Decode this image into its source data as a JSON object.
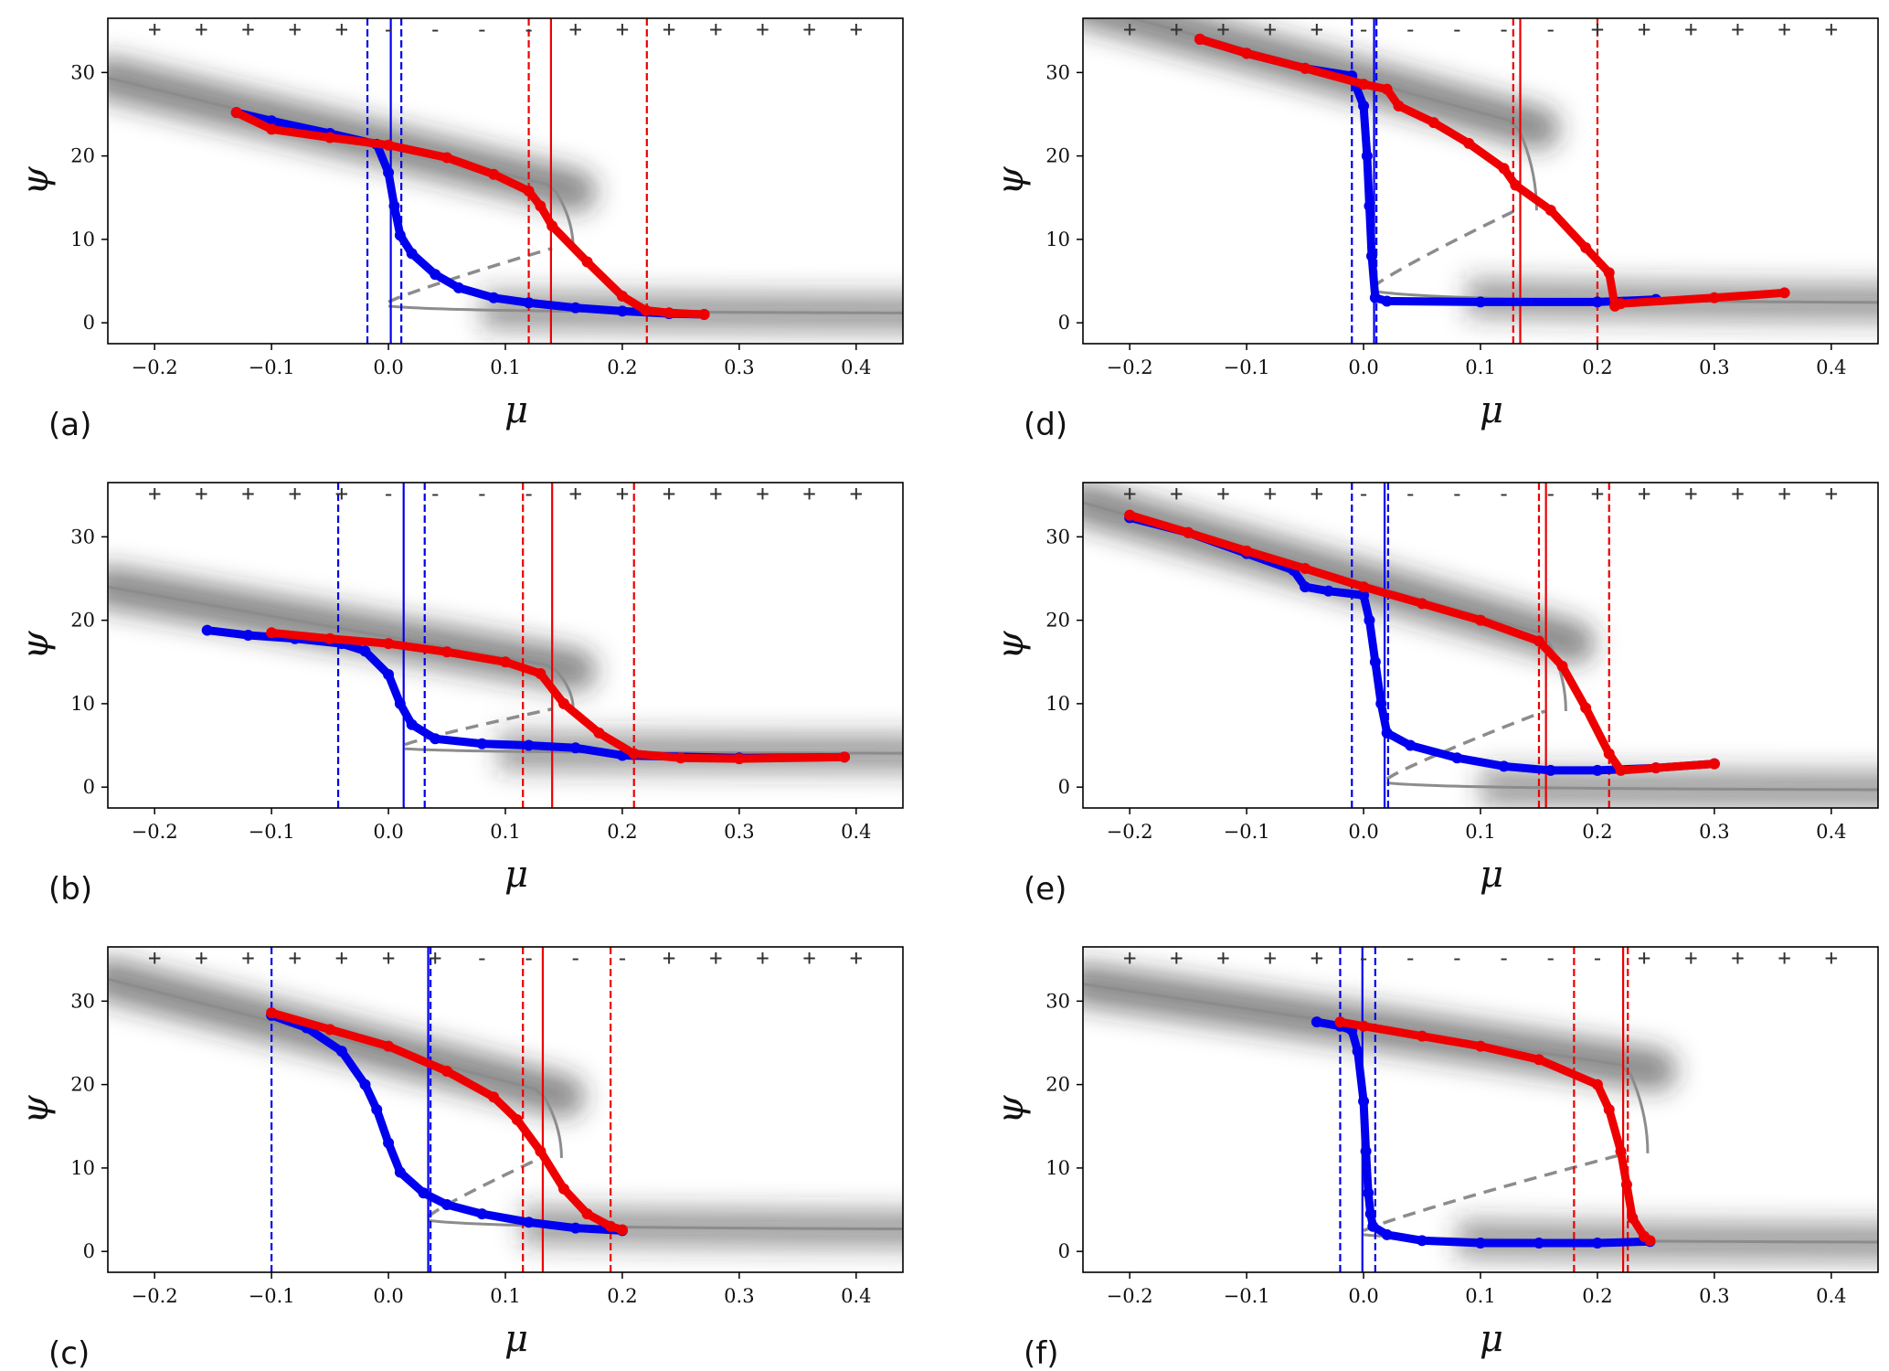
{
  "colors": {
    "up_sweep": "#0000ee",
    "down_sweep": "#ee0000",
    "equilibrium": "#8c8c8c",
    "frame": "#000000"
  },
  "chart_data": [
    {
      "type": "scatter",
      "panel_label": "(a)",
      "xlabel": "μ",
      "ylabel": "ψ",
      "xlim": [
        -0.24,
        0.44
      ],
      "ylim": [
        -2.5,
        36.5
      ],
      "xticks": [
        -0.2,
        -0.1,
        0.0,
        0.1,
        0.2,
        0.3,
        0.4
      ],
      "xtick_labels": [
        "−0.2",
        "−0.1",
        "0.0",
        "0.1",
        "0.2",
        "0.3",
        "0.4"
      ],
      "yticks": [
        0,
        10,
        20,
        30
      ],
      "ytick_labels": [
        "0",
        "10",
        "20",
        "30"
      ],
      "signs": [
        "+",
        "+",
        "+",
        "+",
        "+",
        "-",
        "-",
        "-",
        "-",
        "+",
        "+",
        "+",
        "+",
        "+",
        "+",
        "+"
      ],
      "equilibrium": {
        "mu_lo": 0.0,
        "mu_hi": 0.14,
        "a": 0.8,
        "b": 1.2,
        "c": 21.2,
        "d": -34
      },
      "vlines": [
        {
          "x": -0.018,
          "style": "dashed",
          "series": "up"
        },
        {
          "x": 0.002,
          "style": "solid",
          "series": "up"
        },
        {
          "x": 0.011,
          "style": "dashed",
          "series": "up"
        },
        {
          "x": 0.12,
          "style": "dashed",
          "series": "down"
        },
        {
          "x": 0.139,
          "style": "solid",
          "series": "down"
        },
        {
          "x": 0.221,
          "style": "dashed",
          "series": "down"
        }
      ],
      "series": [
        {
          "name": "increasing μ",
          "color": "blue",
          "x": [
            -0.13,
            -0.1,
            -0.05,
            -0.01,
            0.0,
            0.005,
            0.01,
            0.02,
            0.04,
            0.06,
            0.09,
            0.12,
            0.16,
            0.2,
            0.24,
            0.27
          ],
          "y": [
            25.2,
            24.2,
            22.7,
            21.4,
            18.0,
            14.0,
            10.5,
            8.3,
            5.8,
            4.2,
            3.0,
            2.4,
            1.8,
            1.4,
            1.1,
            1.0
          ]
        },
        {
          "name": "decreasing μ",
          "color": "red",
          "x": [
            -0.13,
            -0.1,
            -0.05,
            0.0,
            0.05,
            0.09,
            0.12,
            0.13,
            0.14,
            0.17,
            0.2,
            0.22,
            0.24,
            0.27
          ],
          "y": [
            25.2,
            23.2,
            22.2,
            21.3,
            19.8,
            17.8,
            15.8,
            14.0,
            11.6,
            7.3,
            3.2,
            1.5,
            1.2,
            1.0
          ]
        }
      ]
    },
    {
      "type": "scatter",
      "panel_label": "(b)",
      "xlabel": "μ",
      "ylabel": "ψ",
      "xlim": [
        -0.24,
        0.44
      ],
      "ylim": [
        -2.5,
        36.5
      ],
      "xticks": [
        -0.2,
        -0.1,
        0.0,
        0.1,
        0.2,
        0.3,
        0.4
      ],
      "xtick_labels": [
        "−0.2",
        "−0.1",
        "0.0",
        "0.1",
        "0.2",
        "0.3",
        "0.4"
      ],
      "yticks": [
        0,
        10,
        20,
        30
      ],
      "ytick_labels": [
        "0",
        "10",
        "20",
        "30"
      ],
      "signs": [
        "+",
        "+",
        "+",
        "+",
        "+",
        "-",
        "-",
        "-",
        "-",
        "+",
        "+",
        "+",
        "+",
        "+",
        "+",
        "+"
      ],
      "equilibrium": {
        "mu_lo": 0.014,
        "mu_hi": 0.14,
        "a": 3.8,
        "b": 0.8,
        "c": 18.0,
        "d": -25
      },
      "vlines": [
        {
          "x": -0.043,
          "style": "dashed",
          "series": "up"
        },
        {
          "x": 0.013,
          "style": "solid",
          "series": "up"
        },
        {
          "x": 0.031,
          "style": "dashed",
          "series": "up"
        },
        {
          "x": 0.115,
          "style": "dashed",
          "series": "down"
        },
        {
          "x": 0.14,
          "style": "solid",
          "series": "down"
        },
        {
          "x": 0.21,
          "style": "dashed",
          "series": "down"
        }
      ],
      "series": [
        {
          "name": "increasing μ",
          "color": "blue",
          "x": [
            -0.155,
            -0.12,
            -0.08,
            -0.04,
            -0.02,
            0.0,
            0.01,
            0.02,
            0.04,
            0.08,
            0.12,
            0.16,
            0.2,
            0.3,
            0.39
          ],
          "y": [
            18.8,
            18.2,
            17.8,
            17.2,
            16.3,
            13.5,
            10.0,
            7.5,
            5.8,
            5.2,
            5.0,
            4.7,
            3.8,
            3.5,
            3.6
          ]
        },
        {
          "name": "decreasing μ",
          "color": "red",
          "x": [
            -0.1,
            -0.05,
            0.0,
            0.05,
            0.1,
            0.13,
            0.15,
            0.18,
            0.21,
            0.25,
            0.3,
            0.39
          ],
          "y": [
            18.5,
            17.8,
            17.2,
            16.2,
            15.0,
            13.6,
            10.0,
            6.5,
            4.0,
            3.5,
            3.4,
            3.6
          ]
        }
      ]
    },
    {
      "type": "scatter",
      "panel_label": "(c)",
      "xlabel": "μ",
      "ylabel": "ψ",
      "xlim": [
        -0.24,
        0.44
      ],
      "ylim": [
        -2.5,
        36.5
      ],
      "xticks": [
        -0.2,
        -0.1,
        0.0,
        0.1,
        0.2,
        0.3,
        0.4
      ],
      "xtick_labels": [
        "−0.2",
        "−0.1",
        "0.0",
        "0.1",
        "0.2",
        "0.3",
        "0.4"
      ],
      "yticks": [
        0,
        10,
        20,
        30
      ],
      "ytick_labels": [
        "0",
        "10",
        "20",
        "30"
      ],
      "signs": [
        "+",
        "+",
        "+",
        "+",
        "+",
        "+",
        "+",
        "-",
        "-",
        "-",
        "-",
        "+",
        "+",
        "+",
        "+",
        "+"
      ],
      "equilibrium": {
        "mu_lo": 0.034,
        "mu_hi": 0.13,
        "a": 2.2,
        "b": 1.5,
        "c": 24.0,
        "d": -36
      },
      "vlines": [
        {
          "x": -0.1,
          "style": "dashed",
          "series": "up"
        },
        {
          "x": 0.034,
          "style": "solid",
          "series": "up"
        },
        {
          "x": 0.036,
          "style": "dashed",
          "series": "up"
        },
        {
          "x": 0.115,
          "style": "dashed",
          "series": "down"
        },
        {
          "x": 0.132,
          "style": "solid",
          "series": "down"
        },
        {
          "x": 0.19,
          "style": "dashed",
          "series": "down"
        }
      ],
      "series": [
        {
          "name": "increasing μ",
          "color": "blue",
          "x": [
            -0.1,
            -0.07,
            -0.04,
            -0.02,
            -0.01,
            0.0,
            0.01,
            0.03,
            0.05,
            0.08,
            0.12,
            0.16,
            0.2
          ],
          "y": [
            28.3,
            26.8,
            24.0,
            20.0,
            17.0,
            13.0,
            9.5,
            7.0,
            5.6,
            4.5,
            3.5,
            2.8,
            2.5
          ]
        },
        {
          "name": "decreasing μ",
          "color": "red",
          "x": [
            -0.1,
            -0.05,
            0.0,
            0.05,
            0.09,
            0.11,
            0.13,
            0.15,
            0.17,
            0.19,
            0.2
          ],
          "y": [
            28.6,
            26.6,
            24.6,
            21.6,
            18.5,
            15.8,
            12.0,
            7.5,
            4.5,
            3.0,
            2.6
          ]
        }
      ]
    },
    {
      "type": "scatter",
      "panel_label": "(d)",
      "xlabel": "μ",
      "ylabel": "ψ",
      "xlim": [
        -0.24,
        0.44
      ],
      "ylim": [
        -2.5,
        36.5
      ],
      "xticks": [
        -0.2,
        -0.1,
        0.0,
        0.1,
        0.2,
        0.3,
        0.4
      ],
      "xtick_labels": [
        "−0.2",
        "−0.1",
        "0.0",
        "0.1",
        "0.2",
        "0.3",
        "0.4"
      ],
      "yticks": [
        0,
        10,
        20,
        30
      ],
      "ytick_labels": [
        "0",
        "10",
        "20",
        "30"
      ],
      "signs": [
        "+",
        "+",
        "+",
        "+",
        "+",
        "-",
        "-",
        "-",
        "-",
        "-",
        "+",
        "+",
        "+",
        "+",
        "+",
        "+"
      ],
      "equilibrium": {
        "mu_lo": 0.008,
        "mu_hi": 0.13,
        "a": 1.8,
        "b": 2.0,
        "c": 29.0,
        "d": -38
      },
      "vlines": [
        {
          "x": -0.01,
          "style": "dashed",
          "series": "up"
        },
        {
          "x": 0.009,
          "style": "solid",
          "series": "up"
        },
        {
          "x": 0.011,
          "style": "dashed",
          "series": "up"
        },
        {
          "x": 0.128,
          "style": "dashed",
          "series": "down"
        },
        {
          "x": 0.134,
          "style": "solid",
          "series": "down"
        },
        {
          "x": 0.2,
          "style": "dashed",
          "series": "down"
        }
      ],
      "series": [
        {
          "name": "increasing μ",
          "color": "blue",
          "x": [
            -0.14,
            -0.1,
            -0.05,
            -0.01,
            0.0,
            0.003,
            0.005,
            0.007,
            0.01,
            0.02,
            0.1,
            0.2,
            0.25
          ],
          "y": [
            34.0,
            32.3,
            30.5,
            29.6,
            26.0,
            20.0,
            14.0,
            8.0,
            3.0,
            2.6,
            2.5,
            2.5,
            2.8
          ]
        },
        {
          "name": "decreasing μ",
          "color": "red",
          "x": [
            -0.14,
            -0.1,
            -0.05,
            0.0,
            0.02,
            0.03,
            0.06,
            0.09,
            0.12,
            0.13,
            0.16,
            0.19,
            0.21,
            0.215,
            0.22,
            0.3,
            0.36
          ],
          "y": [
            34.0,
            32.3,
            30.5,
            28.6,
            28.0,
            26.0,
            24.0,
            21.5,
            18.5,
            16.5,
            13.5,
            9.0,
            6.0,
            2.0,
            2.3,
            3.0,
            3.6
          ]
        }
      ]
    },
    {
      "type": "scatter",
      "panel_label": "(e)",
      "xlabel": "μ",
      "ylabel": "ψ",
      "xlim": [
        -0.24,
        0.44
      ],
      "ylim": [
        -2.5,
        36.5
      ],
      "xticks": [
        -0.2,
        -0.1,
        0.0,
        0.1,
        0.2,
        0.3,
        0.4
      ],
      "xtick_labels": [
        "−0.2",
        "−0.1",
        "0.0",
        "0.1",
        "0.2",
        "0.3",
        "0.4"
      ],
      "yticks": [
        0,
        10,
        20,
        30
      ],
      "ytick_labels": [
        "0",
        "10",
        "20",
        "30"
      ],
      "signs": [
        "+",
        "+",
        "+",
        "+",
        "+",
        "-",
        "-",
        "-",
        "-",
        "-",
        "+",
        "+",
        "+",
        "+",
        "+",
        "+"
      ],
      "equilibrium": {
        "mu_lo": 0.02,
        "mu_hi": 0.155,
        "a": -0.7,
        "b": 1.2,
        "c": 24.5,
        "d": -40
      },
      "vlines": [
        {
          "x": -0.01,
          "style": "dashed",
          "series": "up"
        },
        {
          "x": 0.018,
          "style": "solid",
          "series": "up"
        },
        {
          "x": 0.021,
          "style": "dashed",
          "series": "up"
        },
        {
          "x": 0.15,
          "style": "dashed",
          "series": "down"
        },
        {
          "x": 0.156,
          "style": "solid",
          "series": "down"
        },
        {
          "x": 0.21,
          "style": "dashed",
          "series": "down"
        }
      ],
      "series": [
        {
          "name": "increasing μ",
          "color": "blue",
          "x": [
            -0.2,
            -0.15,
            -0.1,
            -0.06,
            -0.05,
            -0.03,
            0.0,
            0.005,
            0.01,
            0.015,
            0.02,
            0.04,
            0.08,
            0.12,
            0.16,
            0.2,
            0.25,
            0.3
          ],
          "y": [
            32.3,
            30.5,
            28.0,
            26.0,
            24.0,
            23.5,
            23.0,
            20.0,
            15.0,
            10.0,
            6.5,
            5.0,
            3.5,
            2.5,
            2.0,
            2.0,
            2.3,
            2.8
          ]
        },
        {
          "name": "decreasing μ",
          "color": "red",
          "x": [
            -0.2,
            -0.15,
            -0.1,
            -0.05,
            0.0,
            0.05,
            0.1,
            0.15,
            0.17,
            0.19,
            0.21,
            0.22,
            0.25,
            0.3
          ],
          "y": [
            32.6,
            30.5,
            28.3,
            26.2,
            24.0,
            22.0,
            20.0,
            17.5,
            14.5,
            9.5,
            4.0,
            2.0,
            2.3,
            2.8
          ]
        }
      ]
    },
    {
      "type": "scatter",
      "panel_label": "(f)",
      "xlabel": "μ",
      "ylabel": "ψ",
      "xlim": [
        -0.24,
        0.44
      ],
      "ylim": [
        -2.5,
        36.5
      ],
      "xticks": [
        -0.2,
        -0.1,
        0.0,
        0.1,
        0.2,
        0.3,
        0.4
      ],
      "xtick_labels": [
        "−0.2",
        "−0.1",
        "0.0",
        "0.1",
        "0.2",
        "0.3",
        "0.4"
      ],
      "yticks": [
        0,
        10,
        20,
        30
      ],
      "ytick_labels": [
        "0",
        "10",
        "20",
        "30"
      ],
      "signs": [
        "+",
        "+",
        "+",
        "+",
        "+",
        "-",
        "-",
        "-",
        "-",
        "-",
        "-",
        "+",
        "+",
        "+",
        "+",
        "+"
      ],
      "equilibrium": {
        "mu_lo": 0.0,
        "mu_hi": 0.225,
        "a": 0.7,
        "b": 1.3,
        "c": 27.0,
        "d": -21
      },
      "vlines": [
        {
          "x": -0.02,
          "style": "dashed",
          "series": "up"
        },
        {
          "x": -0.001,
          "style": "solid",
          "series": "up"
        },
        {
          "x": 0.01,
          "style": "dashed",
          "series": "up"
        },
        {
          "x": 0.18,
          "style": "dashed",
          "series": "down"
        },
        {
          "x": 0.222,
          "style": "solid",
          "series": "down"
        },
        {
          "x": 0.226,
          "style": "dashed",
          "series": "down"
        }
      ],
      "series": [
        {
          "name": "increasing μ",
          "color": "blue",
          "x": [
            -0.04,
            -0.02,
            -0.01,
            -0.005,
            0.0,
            0.002,
            0.004,
            0.006,
            0.008,
            0.02,
            0.05,
            0.1,
            0.15,
            0.2,
            0.245
          ],
          "y": [
            27.5,
            27.0,
            26.5,
            24.0,
            18.0,
            12.0,
            7.0,
            4.5,
            3.0,
            2.0,
            1.3,
            1.0,
            1.0,
            1.0,
            1.2
          ]
        },
        {
          "name": "decreasing μ",
          "color": "red",
          "x": [
            -0.02,
            0.0,
            0.05,
            0.1,
            0.15,
            0.2,
            0.21,
            0.22,
            0.225,
            0.23,
            0.24,
            0.245
          ],
          "y": [
            27.5,
            27.0,
            25.8,
            24.6,
            23.0,
            20.0,
            17.0,
            12.0,
            8.0,
            4.0,
            1.8,
            1.3
          ]
        }
      ]
    }
  ]
}
